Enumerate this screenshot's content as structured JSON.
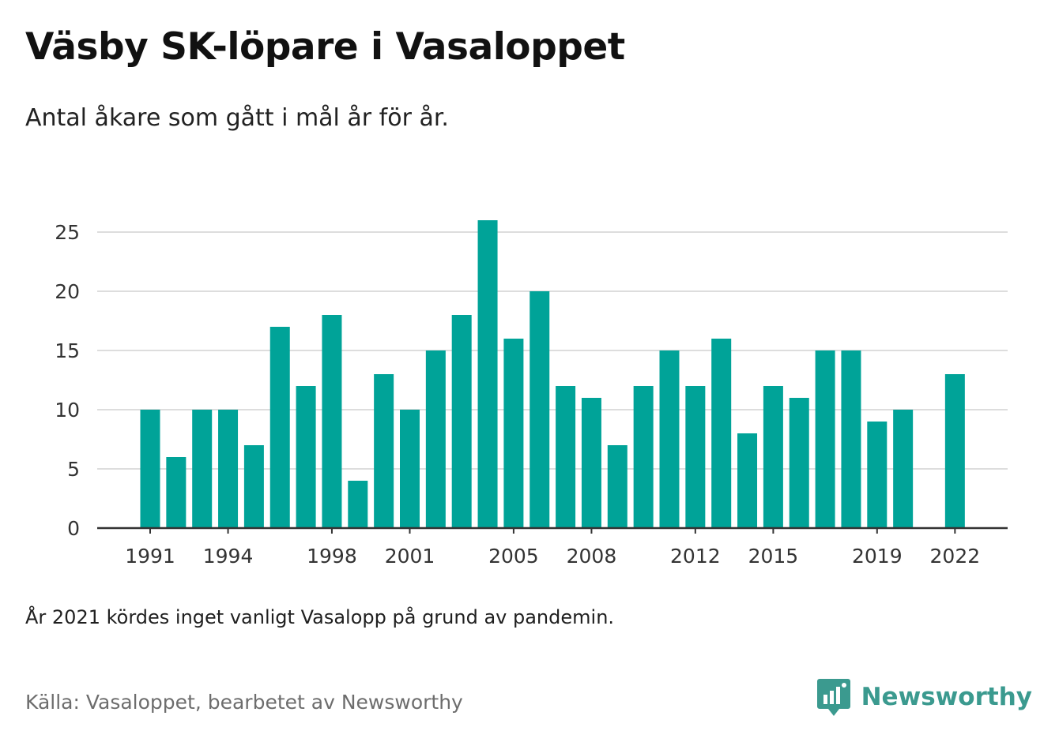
{
  "header": {
    "title": "Väsby SK-löpare i Vasaloppet",
    "subtitle": "Antal åkare som gått i mål år för år."
  },
  "footer": {
    "note": "År 2021 kördes inget vanligt Vasalopp på grund av pandemin.",
    "source": "Källa: Vasaloppet, bearbetet av Newsworthy",
    "brand": "Newsworthy",
    "brand_icon": "newsworthy-bar-chart-bubble-icon"
  },
  "colors": {
    "bar": "#00a398",
    "grid": "#dddddd",
    "axis": "#333333",
    "brand": "#3b9a8f"
  },
  "chart_data": {
    "type": "bar",
    "title": "Väsby SK-löpare i Vasaloppet",
    "subtitle": "Antal åkare som gått i mål år för år.",
    "xlabel": "",
    "ylabel": "",
    "categories": [
      1991,
      1992,
      1993,
      1994,
      1995,
      1996,
      1997,
      1998,
      1999,
      2000,
      2001,
      2002,
      2003,
      2004,
      2005,
      2006,
      2007,
      2008,
      2009,
      2010,
      2011,
      2012,
      2013,
      2014,
      2015,
      2016,
      2017,
      2018,
      2019,
      2020,
      2021,
      2022
    ],
    "values": [
      10,
      6,
      10,
      10,
      7,
      17,
      12,
      18,
      4,
      13,
      10,
      15,
      18,
      26,
      16,
      20,
      12,
      11,
      7,
      12,
      15,
      12,
      16,
      8,
      12,
      11,
      15,
      15,
      9,
      10,
      null,
      13
    ],
    "x_tick_labels": [
      "1991",
      "1994",
      "1998",
      "2001",
      "2005",
      "2008",
      "2012",
      "2015",
      "2019",
      "2022"
    ],
    "y_ticks": [
      0,
      5,
      10,
      15,
      20,
      25
    ],
    "ylim": [
      0,
      27
    ],
    "grid": true,
    "legend": "none"
  }
}
